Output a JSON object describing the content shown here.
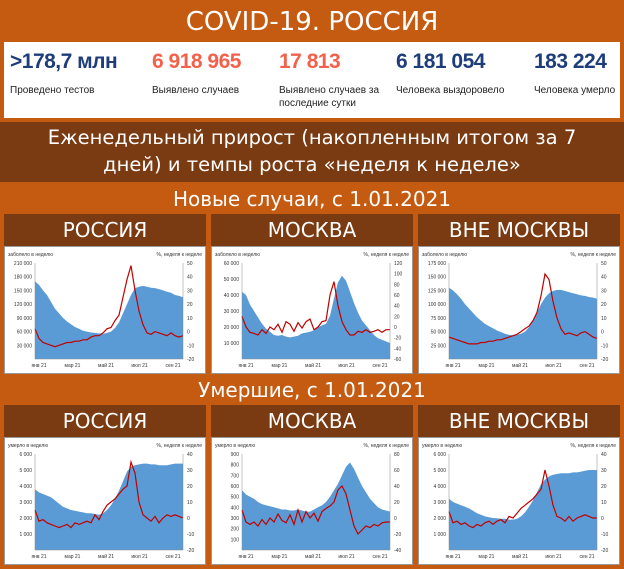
{
  "title": "COVID-19. РОССИЯ",
  "stats": [
    {
      "value": ">178,7 млн",
      "label": "Проведено тестов",
      "color": "#1f3d7a"
    },
    {
      "value": "6 918 965",
      "label": "Выявлено случаев",
      "color": "#f4614b"
    },
    {
      "value": "17 813",
      "label": "Выявлено случаев за последние сутки",
      "color": "#f4614b"
    },
    {
      "value": "6 181 054",
      "label": "Человека выздоровело",
      "color": "#1f3d7a"
    },
    {
      "value": "183 224",
      "label": "Человека умерло",
      "color": "#1f3d7a"
    }
  ],
  "subtitle_line1": "Еженедельный прирост (накопленным итогом за 7",
  "subtitle_line2": "дней) и темпы роста «неделя к неделе»",
  "section_cases": "Новые случаи, с 1.01.2021",
  "section_deaths": "Умершие, с 1.01.2021",
  "regions": [
    "РОССИЯ",
    "МОСКВА",
    "ВНЕ МОСКВЫ"
  ],
  "colors": {
    "area": "#5b9bd5",
    "line": "#c00000",
    "bg": "#c55a11",
    "band": "#7a3a12"
  },
  "chart_data": [
    {
      "type": "area",
      "title": "РОССИЯ",
      "ylabel": "заболело в неделю",
      "y2label": "%, неделя к неделе",
      "yticks": [
        "210 000",
        "180 000",
        "150 000",
        "120 000",
        "90 000",
        "60 000",
        "30 000",
        ""
      ],
      "ylim": [
        0,
        210000
      ],
      "y2ticks": [
        "50",
        "40",
        "30",
        "20",
        "10",
        "0",
        "-10",
        "-20"
      ],
      "y2lim": [
        -20,
        50
      ],
      "xticks": [
        "янв 21",
        "мар 21",
        "май 21",
        "июл 21",
        "сен 21"
      ],
      "series": [
        {
          "values": [
            170000,
            162000,
            150000,
            140000,
            125000,
            110000,
            100000,
            90000,
            82000,
            76000,
            70000,
            66000,
            62000,
            60000,
            58000,
            57000,
            56000,
            55000,
            57000,
            60000,
            68000,
            80000,
            100000,
            120000,
            140000,
            155000,
            158000,
            160000,
            158000,
            156000,
            155000,
            153000,
            150000,
            147000,
            145000,
            140000,
            138000,
            135000
          ]
        },
        {
          "axis": "y2",
          "values": [
            2,
            -5,
            -8,
            -9,
            -10,
            -11,
            -10,
            -9,
            -8,
            -8,
            -7,
            -7,
            -6,
            -6,
            -4,
            -3,
            -3,
            -1,
            2,
            3,
            8,
            12,
            25,
            38,
            48,
            30,
            15,
            5,
            -1,
            -2,
            0,
            -1,
            -2,
            -3,
            -1,
            -3,
            -4,
            -3
          ]
        }
      ]
    },
    {
      "type": "area",
      "title": "МОСКВА",
      "ylabel": "заболело в неделю",
      "y2label": "%, неделя к неделе",
      "yticks": [
        "60 000",
        "50 000",
        "40 000",
        "30 000",
        "20 000",
        "10 000",
        ""
      ],
      "ylim": [
        0,
        60000
      ],
      "y2ticks": [
        "120",
        "100",
        "80",
        "60",
        "40",
        "20",
        "0",
        "-20",
        "-40",
        "-60"
      ],
      "y2lim": [
        -60,
        120
      ],
      "xticks": [
        "янв 21",
        "мар 21",
        "май 21",
        "июл 21",
        "сен 21"
      ],
      "series": [
        {
          "values": [
            42000,
            40000,
            34000,
            30000,
            26000,
            22000,
            19000,
            17000,
            15000,
            14500,
            15000,
            14000,
            13500,
            14000,
            14500,
            16000,
            16500,
            17000,
            18000,
            20000,
            21000,
            22000,
            27000,
            38000,
            48000,
            52000,
            49000,
            42000,
            35000,
            29000,
            24000,
            21000,
            18000,
            15000,
            13000,
            12000,
            11000,
            10000
          ]
        },
        {
          "axis": "y2",
          "values": [
            20,
            0,
            -10,
            -12,
            -15,
            -5,
            -12,
            0,
            -5,
            5,
            -10,
            10,
            5,
            -8,
            8,
            -2,
            10,
            15,
            -5,
            0,
            10,
            12,
            60,
            85,
            40,
            10,
            -5,
            -15,
            -15,
            -8,
            -10,
            -5,
            -10,
            -8,
            -5,
            -10,
            -5,
            -5
          ]
        }
      ]
    },
    {
      "type": "area",
      "title": "ВНЕ МОСКВЫ",
      "ylabel": "заболело в неделю",
      "y2label": "%, неделя к неделе",
      "yticks": [
        "175 000",
        "150 000",
        "125 000",
        "100 000",
        "75 000",
        "50 000",
        "25 000",
        ""
      ],
      "ylim": [
        0,
        175000
      ],
      "y2ticks": [
        "50",
        "40",
        "30",
        "20",
        "10",
        "0",
        "-10",
        "-20"
      ],
      "y2lim": [
        -20,
        50
      ],
      "xticks": [
        "янв 21",
        "мар 21",
        "май 21",
        "июл 21",
        "сен 21"
      ],
      "series": [
        {
          "values": [
            130000,
            125000,
            118000,
            110000,
            100000,
            92000,
            84000,
            76000,
            70000,
            64000,
            60000,
            56000,
            52000,
            49000,
            46000,
            44000,
            43000,
            44000,
            46000,
            50000,
            58000,
            70000,
            85000,
            100000,
            112000,
            120000,
            124000,
            126000,
            126000,
            124000,
            122000,
            120000,
            118000,
            116000,
            115000,
            113000,
            112000,
            110000
          ]
        },
        {
          "axis": "y2",
          "values": [
            -4,
            -5,
            -6,
            -7,
            -8,
            -9,
            -9,
            -9,
            -8,
            -8,
            -7,
            -7,
            -6,
            -6,
            -5,
            -4,
            -3,
            -2,
            0,
            2,
            4,
            8,
            14,
            26,
            42,
            38,
            22,
            10,
            2,
            -2,
            -1,
            -2,
            -3,
            -1,
            0,
            -2,
            -4,
            -5
          ]
        }
      ]
    },
    {
      "type": "area",
      "title": "РОССИЯ",
      "ylabel": "умерло в неделю",
      "y2label": "%, неделя к неделе",
      "yticks": [
        "6 000",
        "5 000",
        "4 000",
        "3 000",
        "2 000",
        "1 000",
        ""
      ],
      "ylim": [
        0,
        6000
      ],
      "y2ticks": [
        "40",
        "30",
        "20",
        "10",
        "0",
        "-10",
        "-20"
      ],
      "y2lim": [
        -20,
        40
      ],
      "xticks": [
        "янв 21",
        "мар 21",
        "май 21",
        "июл 21",
        "сен 21"
      ],
      "series": [
        {
          "values": [
            3800,
            3600,
            3500,
            3400,
            3300,
            3100,
            2900,
            2700,
            2600,
            2500,
            2450,
            2400,
            2350,
            2300,
            2300,
            2250,
            2200,
            2300,
            2500,
            2800,
            3200,
            3700,
            4300,
            4900,
            5200,
            5300,
            5350,
            5400,
            5400,
            5350,
            5350,
            5300,
            5300,
            5300,
            5350,
            5400,
            5400,
            5400
          ]
        },
        {
          "axis": "y2",
          "values": [
            5,
            -2,
            -1,
            -3,
            -4,
            -5,
            -6,
            -5,
            -4,
            -6,
            -3,
            -4,
            -3,
            -2,
            -3,
            2,
            -1,
            4,
            8,
            10,
            12,
            15,
            18,
            20,
            35,
            28,
            10,
            2,
            0,
            -2,
            1,
            -3,
            0,
            2,
            1,
            2,
            1,
            0
          ]
        }
      ]
    },
    {
      "type": "area",
      "title": "МОСКВА",
      "ylabel": "умерло в неделю",
      "y2label": "%, неделя к неделе",
      "yticks": [
        "900",
        "800",
        "700",
        "600",
        "500",
        "400",
        "300",
        "200",
        "100",
        ""
      ],
      "ylim": [
        0,
        900
      ],
      "y2ticks": [
        "80",
        "60",
        "40",
        "20",
        "0",
        "-20",
        "-40"
      ],
      "y2lim": [
        -40,
        80
      ],
      "xticks": [
        "янв 21",
        "мар 21",
        "май 21",
        "июл 21",
        "сен 21"
      ],
      "series": [
        {
          "values": [
            560,
            520,
            500,
            480,
            450,
            430,
            420,
            410,
            400,
            390,
            380,
            380,
            370,
            370,
            380,
            370,
            360,
            360,
            380,
            400,
            420,
            450,
            500,
            560,
            620,
            700,
            780,
            820,
            760,
            680,
            600,
            540,
            480,
            440,
            400,
            380,
            370,
            360
          ]
        },
        {
          "axis": "y2",
          "values": [
            10,
            -5,
            -8,
            -5,
            -10,
            -2,
            -8,
            0,
            -5,
            5,
            -3,
            -6,
            4,
            -8,
            10,
            -5,
            8,
            0,
            6,
            -4,
            8,
            12,
            15,
            20,
            35,
            40,
            30,
            10,
            -10,
            -20,
            -15,
            -10,
            -12,
            -8,
            -10,
            -6,
            -5,
            -5
          ]
        }
      ]
    },
    {
      "type": "area",
      "title": "ВНЕ МОСКВЫ",
      "ylabel": "умерло в неделю",
      "y2label": "%, неделя к неделе",
      "yticks": [
        "6 000",
        "5 000",
        "4 000",
        "3 000",
        "2 000",
        "1 000",
        ""
      ],
      "ylim": [
        0,
        6000
      ],
      "y2ticks": [
        "40",
        "30",
        "20",
        "10",
        "0",
        "-10",
        "-20"
      ],
      "y2lim": [
        -20,
        40
      ],
      "xticks": [
        "янв 21",
        "мар 21",
        "май 21",
        "июл 21",
        "сен 21"
      ],
      "series": [
        {
          "values": [
            3200,
            3000,
            2900,
            2800,
            2700,
            2600,
            2450,
            2300,
            2200,
            2100,
            2050,
            2000,
            1980,
            1950,
            1950,
            1900,
            1900,
            1950,
            2100,
            2350,
            2700,
            3100,
            3600,
            4100,
            4400,
            4600,
            4700,
            4750,
            4800,
            4800,
            4800,
            4850,
            4850,
            4900,
            4950,
            5000,
            5000,
            5000
          ]
        },
        {
          "axis": "y2",
          "values": [
            4,
            -3,
            -2,
            -4,
            -3,
            -5,
            -6,
            -4,
            -5,
            -3,
            -2,
            -4,
            -2,
            -1,
            -3,
            1,
            0,
            3,
            6,
            8,
            10,
            12,
            15,
            18,
            30,
            20,
            8,
            1,
            0,
            -2,
            1,
            -2,
            0,
            1,
            2,
            1,
            0,
            0
          ]
        }
      ]
    }
  ]
}
